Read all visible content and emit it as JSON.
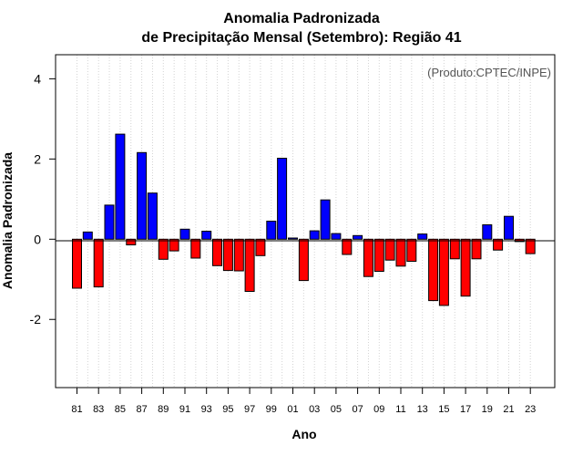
{
  "chart_data": {
    "type": "bar",
    "title_line1": "Anomalia Padronizada",
    "title_line2": "de Precipitação Mensal (Setembro): Região 41",
    "credit": "(Produto:CPTEC/INPE)",
    "xlabel": "Ano",
    "ylabel": "Anomalia Padronizada",
    "ylim": [
      -3.7,
      4.6
    ],
    "yticks": [
      -2,
      0,
      2,
      4
    ],
    "ytick_labels": [
      "-2",
      "0",
      "2",
      "4"
    ],
    "categories": [
      "81",
      "82",
      "83",
      "84",
      "85",
      "86",
      "87",
      "88",
      "89",
      "90",
      "91",
      "92",
      "93",
      "94",
      "95",
      "96",
      "97",
      "98",
      "99",
      "00",
      "01",
      "02",
      "03",
      "04",
      "05",
      "06",
      "07",
      "08",
      "09",
      "10",
      "11",
      "12",
      "13",
      "14",
      "15",
      "16",
      "17",
      "18",
      "19",
      "20",
      "21",
      "22",
      "23"
    ],
    "xtick_labels": [
      "81",
      "83",
      "85",
      "87",
      "89",
      "91",
      "93",
      "95",
      "97",
      "99",
      "01",
      "03",
      "05",
      "07",
      "09",
      "11",
      "13",
      "15",
      "17",
      "19",
      "21",
      "23"
    ],
    "values": [
      -1.22,
      0.18,
      -1.19,
      0.85,
      2.62,
      -0.14,
      2.16,
      1.15,
      -0.5,
      -0.29,
      0.25,
      -0.47,
      0.2,
      -0.66,
      -0.78,
      -0.79,
      -1.3,
      -0.41,
      0.45,
      2.02,
      0.03,
      -1.03,
      0.21,
      0.98,
      0.14,
      -0.38,
      0.09,
      -0.93,
      -0.8,
      -0.52,
      -0.67,
      -0.55,
      0.13,
      -1.53,
      -1.65,
      -0.49,
      -1.42,
      -0.49,
      0.36,
      -0.27,
      0.57,
      -0.06,
      -0.36
    ],
    "positive_color": "#0000ff",
    "negative_color": "#ff0000",
    "grid": "vertical dotted"
  }
}
